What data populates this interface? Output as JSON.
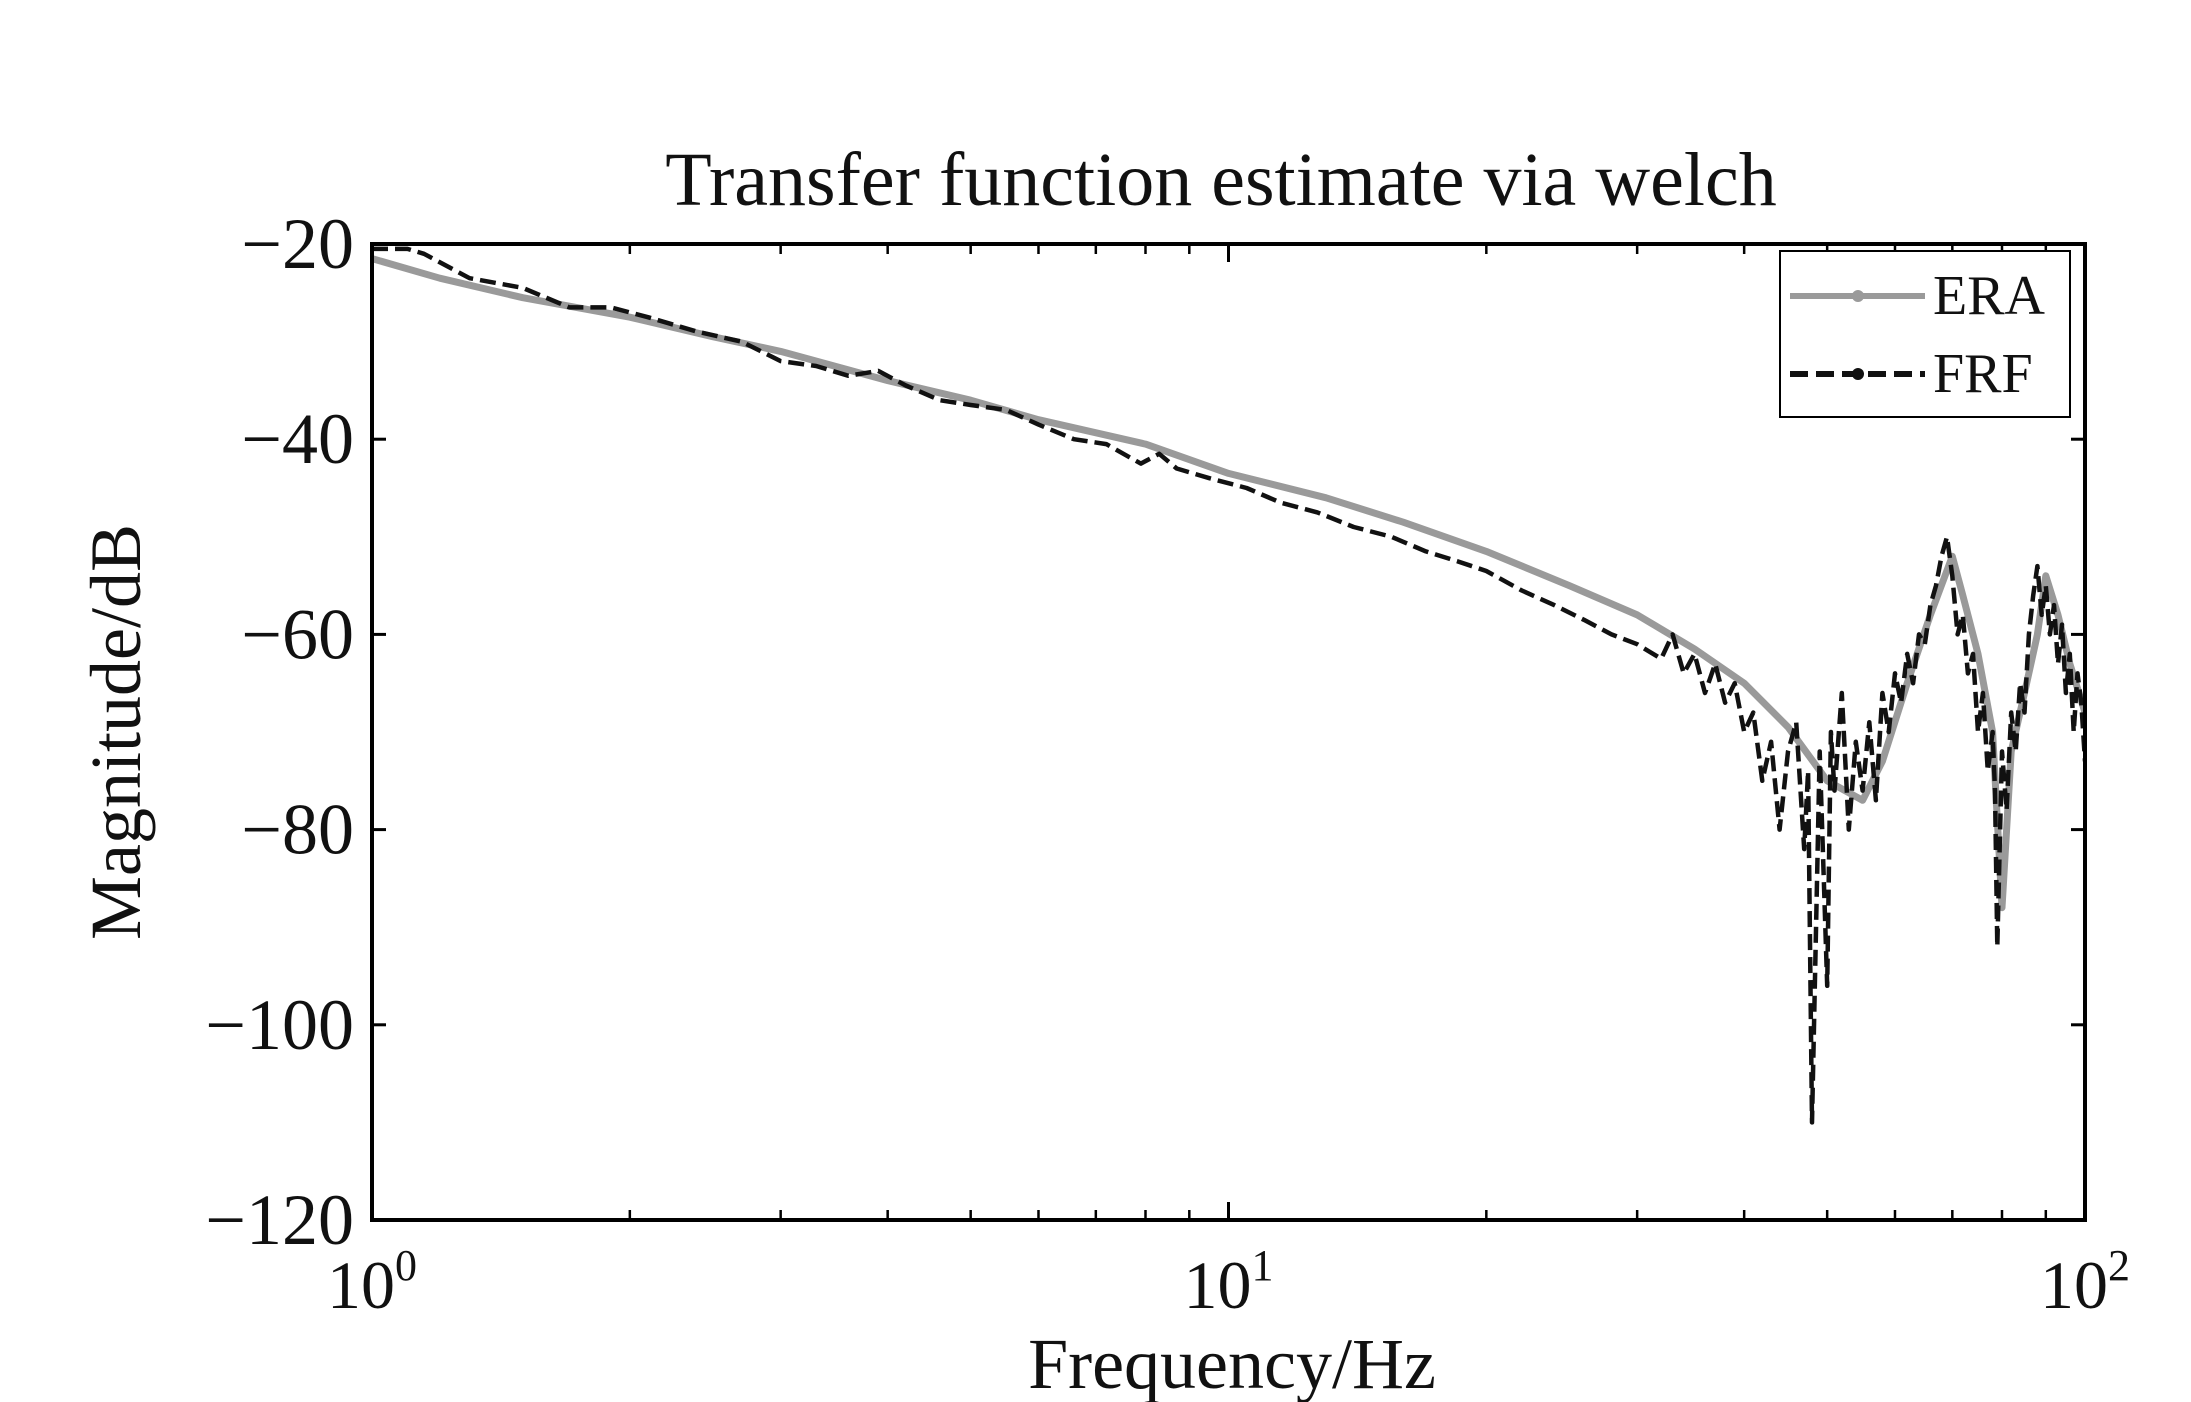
{
  "chart_data": {
    "type": "line",
    "title": "Transfer function estimate via welch",
    "xlabel": "Frequency/Hz",
    "ylabel": "Magnitude/dB",
    "x_scale": "log",
    "xlim": [
      1,
      100
    ],
    "ylim": [
      -120,
      -20
    ],
    "grid": false,
    "legend_position": "top-right",
    "x_ticks": [
      {
        "value": 1,
        "base": "10",
        "exp": "0"
      },
      {
        "value": 10,
        "base": "10",
        "exp": "1"
      },
      {
        "value": 100,
        "base": "10",
        "exp": "2"
      }
    ],
    "y_ticks": [
      {
        "value": -20,
        "label": "−20"
      },
      {
        "value": -40,
        "label": "−40"
      },
      {
        "value": -60,
        "label": "−60"
      },
      {
        "value": -80,
        "label": "−80"
      },
      {
        "value": -100,
        "label": "−100"
      },
      {
        "value": -120,
        "label": "−120"
      }
    ],
    "series": [
      {
        "name": "ERA",
        "color": "#9a9a9a",
        "style": "solid",
        "x": [
          1,
          1.2,
          1.5,
          2,
          2.5,
          3,
          4,
          5,
          6,
          8,
          10,
          13,
          16,
          20,
          25,
          30,
          35,
          40,
          45,
          50,
          55,
          58,
          62,
          66,
          70,
          72,
          75,
          78,
          80,
          82,
          85,
          88,
          90,
          93,
          96,
          100
        ],
        "values": [
          -21.5,
          -23.5,
          -25.5,
          -27.5,
          -29.5,
          -31,
          -34,
          -36,
          -38,
          -40.5,
          -43.5,
          -46,
          -48.5,
          -51.5,
          -55,
          -58,
          -61.5,
          -65,
          -69.5,
          -75,
          -77,
          -73,
          -65,
          -58,
          -52,
          -56,
          -62,
          -70,
          -88,
          -72,
          -66,
          -60,
          -54,
          -58,
          -63,
          -68
        ]
      },
      {
        "name": "FRF",
        "color": "#111111",
        "style": "dashed",
        "x": [
          1,
          1.1,
          1.15,
          1.3,
          1.5,
          1.7,
          1.9,
          2.1,
          2.4,
          2.7,
          3,
          3.3,
          3.6,
          3.9,
          4.2,
          4.6,
          5,
          5.5,
          6,
          6.6,
          7.2,
          7.9,
          8.3,
          8.7,
          9.5,
          10.5,
          11.5,
          12.7,
          14,
          15.5,
          17,
          18.5,
          20,
          22,
          24,
          26,
          28,
          30,
          32,
          33,
          34,
          35,
          36,
          37,
          38,
          39,
          40,
          41,
          42,
          43,
          44,
          45,
          46,
          47,
          47.5,
          48,
          49,
          50,
          50.5,
          51,
          52,
          53,
          54,
          55,
          56,
          57,
          58,
          59,
          60,
          61,
          62,
          63,
          64,
          65,
          66,
          67,
          68,
          69,
          70,
          71,
          72,
          73,
          74,
          75,
          76,
          77,
          78,
          78.5,
          79,
          80,
          81,
          82,
          83,
          84,
          85,
          86,
          87,
          88,
          89,
          90,
          91,
          92,
          93,
          94,
          95,
          96,
          97,
          98,
          99,
          100
        ],
        "values": [
          -20.5,
          -20.5,
          -21,
          -23.5,
          -24.5,
          -26.5,
          -26.5,
          -27.5,
          -29,
          -30,
          -32,
          -32.5,
          -33.5,
          -33,
          -34.5,
          -36,
          -36.5,
          -37,
          -38.5,
          -40,
          -40.5,
          -42.5,
          -41.5,
          -43,
          -44,
          -45,
          -46.5,
          -47.5,
          -49,
          -50,
          -51.5,
          -52.5,
          -53.5,
          -55.5,
          -57,
          -58.5,
          -60,
          -61,
          -62.5,
          -60,
          -64,
          -62,
          -66,
          -63,
          -67,
          -65,
          -70,
          -68,
          -75,
          -71,
          -80,
          -72,
          -69,
          -82,
          -74,
          -110,
          -72,
          -96,
          -70,
          -76,
          -66,
          -80,
          -71,
          -76,
          -69,
          -77,
          -66,
          -70,
          -64,
          -67,
          -62,
          -65,
          -60,
          -61,
          -57,
          -55,
          -52,
          -50,
          -54,
          -60,
          -58,
          -64,
          -62,
          -70,
          -66,
          -74,
          -70,
          -76,
          -92,
          -72,
          -78,
          -68,
          -72,
          -65,
          -68,
          -60,
          -56,
          -53,
          -58,
          -55,
          -60,
          -57,
          -63,
          -59,
          -66,
          -62,
          -70,
          -64,
          -67,
          -73
        ]
      }
    ]
  }
}
